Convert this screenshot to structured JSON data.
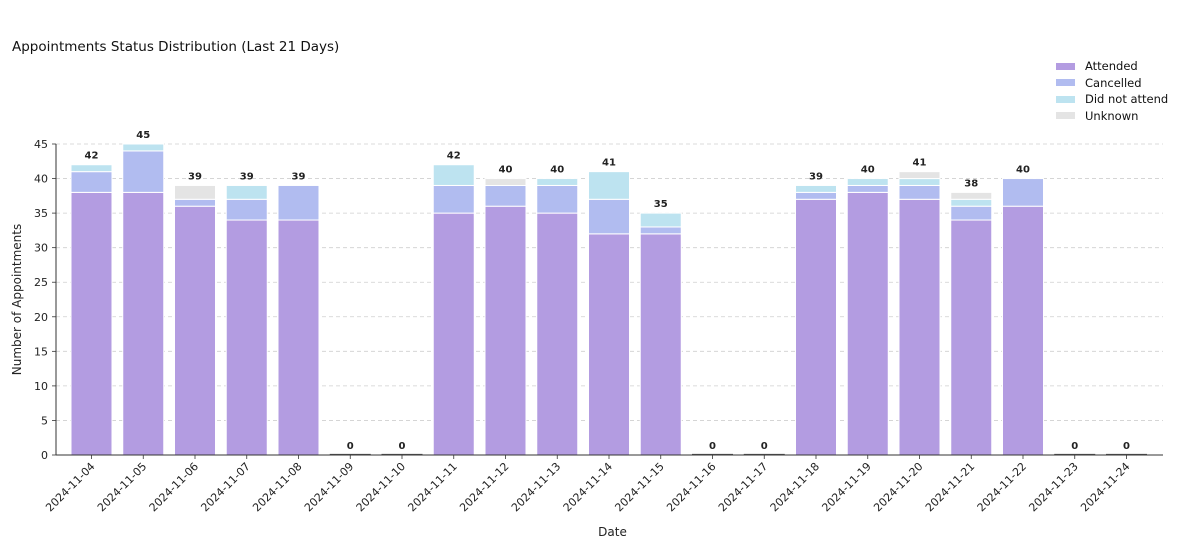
{
  "chart_data": {
    "type": "bar",
    "stacked": true,
    "title": "Appointments Status Distribution (Last 21 Days)",
    "xlabel": "Date",
    "ylabel": "Number of Appointments",
    "ylim": [
      0,
      45
    ],
    "yticks": [
      0,
      5,
      10,
      15,
      20,
      25,
      30,
      35,
      40,
      45
    ],
    "grid": "horizontal dashed",
    "legend_position": "top-right",
    "categories": [
      "2024-11-04",
      "2024-11-05",
      "2024-11-06",
      "2024-11-07",
      "2024-11-08",
      "2024-11-09",
      "2024-11-10",
      "2024-11-11",
      "2024-11-12",
      "2024-11-13",
      "2024-11-14",
      "2024-11-15",
      "2024-11-16",
      "2024-11-17",
      "2024-11-18",
      "2024-11-19",
      "2024-11-20",
      "2024-11-21",
      "2024-11-22",
      "2024-11-23",
      "2024-11-24"
    ],
    "series": [
      {
        "name": "Attended",
        "color": "#b39ce1",
        "values": [
          38,
          38,
          36,
          34,
          34,
          0,
          0,
          35,
          36,
          35,
          32,
          32,
          0,
          0,
          37,
          38,
          37,
          34,
          36,
          0,
          0
        ]
      },
      {
        "name": "Cancelled",
        "color": "#b1bcf0",
        "values": [
          3,
          6,
          1,
          3,
          5,
          0,
          0,
          4,
          3,
          4,
          5,
          1,
          0,
          0,
          1,
          1,
          2,
          2,
          4,
          0,
          0
        ]
      },
      {
        "name": "Did not attend",
        "color": "#bde3f0",
        "values": [
          1,
          1,
          0,
          2,
          0,
          0,
          0,
          3,
          0,
          1,
          4,
          2,
          0,
          0,
          1,
          1,
          1,
          1,
          0,
          0,
          0
        ]
      },
      {
        "name": "Unknown",
        "color": "#e4e4e4",
        "values": [
          0,
          0,
          2,
          0,
          0,
          0,
          0,
          0,
          1,
          0,
          0,
          0,
          0,
          0,
          0,
          0,
          1,
          1,
          0,
          0,
          0
        ]
      }
    ],
    "totals": [
      42,
      45,
      39,
      39,
      39,
      0,
      0,
      42,
      40,
      40,
      41,
      35,
      0,
      0,
      39,
      40,
      41,
      38,
      40,
      0,
      0
    ]
  }
}
